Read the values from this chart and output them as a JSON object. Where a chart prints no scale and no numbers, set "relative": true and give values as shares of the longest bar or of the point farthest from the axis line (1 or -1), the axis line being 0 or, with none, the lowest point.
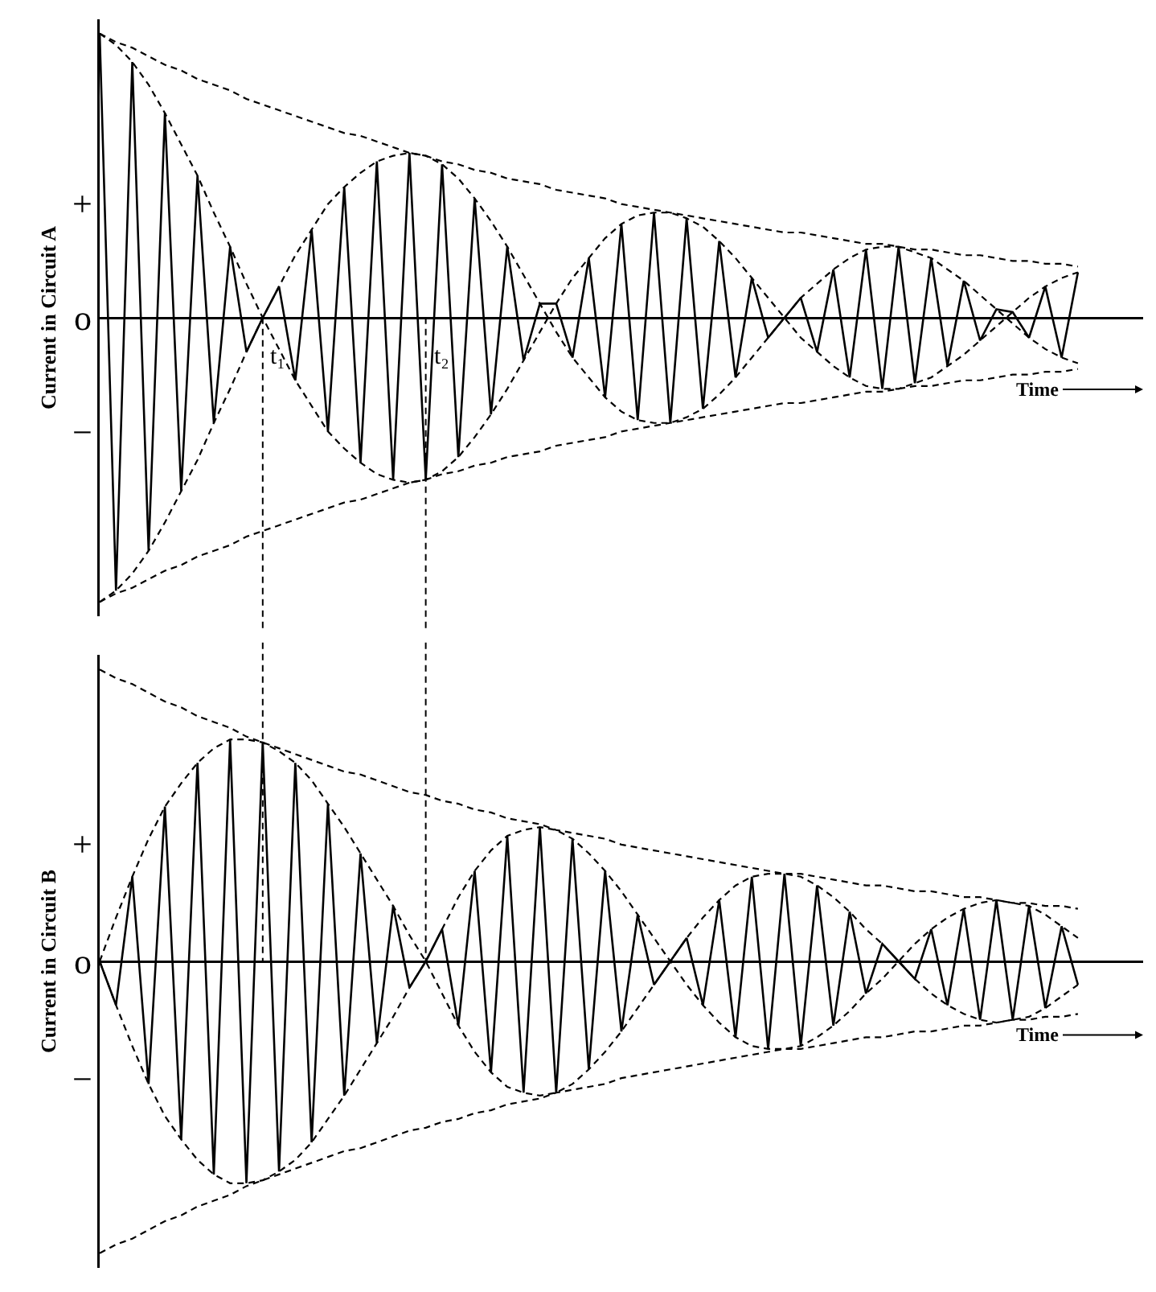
{
  "chart_data": [
    {
      "type": "line",
      "relative": true,
      "ylabel": "Current in Circuit A",
      "categories": [
        null,
        null,
        null,
        null,
        null,
        null,
        null,
        null,
        null,
        null,
        null,
        null,
        null,
        null,
        null,
        null,
        null,
        null,
        null,
        null,
        null,
        null,
        null,
        null,
        null,
        null,
        null,
        null,
        null,
        null,
        null,
        null,
        null,
        null,
        null,
        null,
        null,
        null,
        null,
        null,
        null,
        null,
        null,
        null,
        null,
        null,
        null,
        null,
        null,
        null,
        null,
        null,
        null,
        null,
        null,
        null,
        null,
        null,
        null,
        null,
        null
      ],
      "series": [
        {
          "color": "#000000",
          "line_style": "solid",
          "values": [
            1.0,
            -0.96,
            0.9,
            -0.82,
            0.72,
            -0.61,
            0.5,
            -0.37,
            0.25,
            -0.12,
            0,
            0.11,
            -0.22,
            0.31,
            -0.4,
            0.46,
            -0.51,
            0.55,
            -0.57,
            0.58,
            -0.57,
            0.54,
            -0.49,
            0.42,
            -0.34,
            0.25,
            -0.15,
            0.05,
            0.05,
            -0.14,
            0.21,
            -0.28,
            0.33,
            -0.36,
            0.37,
            -0.37,
            0.35,
            -0.32,
            0.27,
            -0.21,
            0.14,
            -0.07,
            0,
            0.07,
            -0.12,
            0.17,
            -0.21,
            0.24,
            -0.25,
            0.25,
            -0.23,
            0.21,
            -0.17,
            0.13,
            -0.08,
            0.03,
            0.02,
            -0.07,
            0.11,
            -0.14,
            0.16
          ]
        },
        {
          "color": "#000000",
          "line_style": "dashed",
          "values": [
            1.0,
            0.96,
            0.9,
            0.82,
            0.72,
            0.61,
            0.5,
            0.37,
            0.25,
            0.12,
            0,
            -0.11,
            -0.22,
            -0.31,
            -0.4,
            -0.46,
            -0.51,
            -0.55,
            -0.57,
            -0.58,
            -0.57,
            -0.54,
            -0.49,
            -0.42,
            -0.34,
            -0.25,
            -0.15,
            -0.05,
            0.05,
            0.14,
            0.21,
            0.28,
            0.33,
            0.36,
            0.37,
            0.37,
            0.35,
            0.32,
            0.27,
            0.21,
            0.14,
            0.07,
            0,
            -0.07,
            -0.12,
            -0.17,
            -0.21,
            -0.24,
            -0.25,
            -0.25,
            -0.23,
            -0.21,
            -0.17,
            -0.13,
            -0.08,
            -0.03,
            0.02,
            0.07,
            0.11,
            0.14,
            0.16
          ]
        },
        {
          "color": "#000000",
          "line_style": "dashed",
          "values": [
            -1.0,
            -0.96,
            -0.9,
            -0.82,
            -0.72,
            -0.61,
            -0.5,
            -0.37,
            -0.25,
            -0.12,
            0,
            0.11,
            0.22,
            0.31,
            0.4,
            0.46,
            0.51,
            0.55,
            0.57,
            0.58,
            0.57,
            0.54,
            0.49,
            0.42,
            0.34,
            0.25,
            0.15,
            0.05,
            -0.05,
            -0.14,
            -0.21,
            -0.28,
            -0.33,
            -0.36,
            -0.37,
            -0.37,
            -0.35,
            -0.32,
            -0.27,
            -0.21,
            -0.14,
            -0.07,
            0,
            0.07,
            0.12,
            0.17,
            0.21,
            0.24,
            0.25,
            0.25,
            0.23,
            0.21,
            0.17,
            0.13,
            0.08,
            0.03,
            -0.02,
            -0.07,
            -0.11,
            -0.14,
            -0.16
          ]
        },
        {
          "color": "#000000",
          "line_style": "dashed",
          "values": [
            1.0,
            0.97,
            0.95,
            0.92,
            0.89,
            0.87,
            0.84,
            0.82,
            0.8,
            0.77,
            0.75,
            0.73,
            0.71,
            0.69,
            0.67,
            0.65,
            0.64,
            0.62,
            0.6,
            0.58,
            0.57,
            0.55,
            0.54,
            0.52,
            0.51,
            0.49,
            0.48,
            0.47,
            0.45,
            0.44,
            0.43,
            0.42,
            0.4,
            0.39,
            0.38,
            0.37,
            0.36,
            0.35,
            0.34,
            0.33,
            0.32,
            0.31,
            0.3,
            0.3,
            0.29,
            0.28,
            0.27,
            0.26,
            0.26,
            0.25,
            0.24,
            0.24,
            0.23,
            0.22,
            0.22,
            0.21,
            0.2,
            0.2,
            0.19,
            0.19,
            0.18
          ]
        },
        {
          "color": "#000000",
          "line_style": "dashed",
          "values": [
            -1.0,
            -0.97,
            -0.95,
            -0.92,
            -0.89,
            -0.87,
            -0.84,
            -0.82,
            -0.8,
            -0.77,
            -0.75,
            -0.73,
            -0.71,
            -0.69,
            -0.67,
            -0.65,
            -0.64,
            -0.62,
            -0.6,
            -0.58,
            -0.57,
            -0.55,
            -0.54,
            -0.52,
            -0.51,
            -0.49,
            -0.48,
            -0.47,
            -0.45,
            -0.44,
            -0.43,
            -0.42,
            -0.4,
            -0.39,
            -0.38,
            -0.37,
            -0.36,
            -0.35,
            -0.34,
            -0.33,
            -0.32,
            -0.31,
            -0.3,
            -0.3,
            -0.29,
            -0.28,
            -0.27,
            -0.26,
            -0.26,
            -0.25,
            -0.24,
            -0.24,
            -0.23,
            -0.22,
            -0.22,
            -0.21,
            -0.2,
            -0.2,
            -0.19,
            -0.19,
            -0.18
          ]
        }
      ],
      "annotations": [
        "+",
        "o",
        "−",
        "Time",
        "t₁",
        "t₂"
      ]
    },
    {
      "type": "line",
      "relative": true,
      "ylabel": "Current in Circuit B",
      "categories": [
        null,
        null,
        null,
        null,
        null,
        null,
        null,
        null,
        null,
        null,
        null,
        null,
        null,
        null,
        null,
        null,
        null,
        null,
        null,
        null,
        null,
        null,
        null,
        null,
        null,
        null,
        null,
        null,
        null,
        null,
        null,
        null,
        null,
        null,
        null,
        null,
        null,
        null,
        null,
        null,
        null,
        null,
        null,
        null,
        null,
        null,
        null,
        null,
        null,
        null,
        null,
        null,
        null,
        null,
        null,
        null,
        null,
        null,
        null,
        null,
        null
      ],
      "series": [
        {
          "color": "#000000",
          "line_style": "solid",
          "values": [
            0,
            -0.15,
            0.29,
            -0.42,
            0.53,
            -0.61,
            0.68,
            -0.73,
            0.76,
            -0.76,
            0.75,
            -0.72,
            0.68,
            -0.62,
            0.54,
            -0.46,
            0.37,
            -0.28,
            0.19,
            -0.09,
            0,
            0.11,
            -0.22,
            0.31,
            -0.38,
            0.43,
            -0.45,
            0.46,
            -0.45,
            0.42,
            -0.37,
            0.31,
            -0.24,
            0.16,
            -0.08,
            0,
            0.08,
            -0.15,
            0.21,
            -0.26,
            0.29,
            -0.3,
            0.3,
            -0.29,
            0.26,
            -0.22,
            0.17,
            -0.11,
            0.06,
            0,
            -0.06,
            0.11,
            -0.15,
            0.18,
            -0.2,
            0.21,
            -0.2,
            0.19,
            -0.16,
            0.12,
            -0.08
          ]
        },
        {
          "color": "#000000",
          "line_style": "dashed",
          "values": [
            0,
            0.15,
            0.29,
            0.42,
            0.53,
            0.61,
            0.68,
            0.73,
            0.76,
            0.76,
            0.75,
            0.72,
            0.68,
            0.62,
            0.54,
            0.46,
            0.37,
            0.28,
            0.19,
            0.09,
            0,
            -0.11,
            -0.22,
            -0.31,
            -0.38,
            -0.43,
            -0.45,
            -0.46,
            -0.45,
            -0.42,
            -0.37,
            -0.31,
            -0.24,
            -0.16,
            -0.08,
            0,
            0.08,
            0.15,
            0.21,
            0.26,
            0.29,
            0.3,
            0.3,
            0.29,
            0.26,
            0.22,
            0.17,
            0.11,
            0.06,
            0,
            -0.06,
            -0.11,
            -0.15,
            -0.18,
            -0.2,
            -0.21,
            -0.2,
            -0.19,
            -0.16,
            -0.12,
            -0.08
          ]
        },
        {
          "color": "#000000",
          "line_style": "dashed",
          "values": [
            0,
            -0.15,
            -0.29,
            -0.42,
            -0.53,
            -0.61,
            -0.68,
            -0.73,
            -0.76,
            -0.76,
            -0.75,
            -0.72,
            -0.68,
            -0.62,
            -0.54,
            -0.46,
            -0.37,
            -0.28,
            -0.19,
            -0.09,
            0,
            0.11,
            0.22,
            0.31,
            0.38,
            0.43,
            0.45,
            0.46,
            0.45,
            0.42,
            0.37,
            0.31,
            0.24,
            0.16,
            0.08,
            0,
            -0.08,
            -0.15,
            -0.21,
            -0.26,
            -0.29,
            -0.3,
            -0.3,
            -0.29,
            -0.26,
            -0.22,
            -0.17,
            -0.11,
            -0.06,
            0,
            0.06,
            0.11,
            0.15,
            0.18,
            0.2,
            0.21,
            0.2,
            0.19,
            0.16,
            0.12,
            0.08
          ]
        },
        {
          "color": "#000000",
          "line_style": "dashed",
          "values": [
            1.0,
            0.97,
            0.95,
            0.92,
            0.89,
            0.87,
            0.84,
            0.82,
            0.8,
            0.77,
            0.75,
            0.73,
            0.71,
            0.69,
            0.67,
            0.65,
            0.64,
            0.62,
            0.6,
            0.58,
            0.57,
            0.55,
            0.54,
            0.52,
            0.51,
            0.49,
            0.48,
            0.47,
            0.45,
            0.44,
            0.43,
            0.42,
            0.4,
            0.39,
            0.38,
            0.37,
            0.36,
            0.35,
            0.34,
            0.33,
            0.32,
            0.31,
            0.3,
            0.3,
            0.29,
            0.28,
            0.27,
            0.26,
            0.26,
            0.25,
            0.24,
            0.24,
            0.23,
            0.22,
            0.22,
            0.21,
            0.2,
            0.2,
            0.19,
            0.19,
            0.18
          ]
        },
        {
          "color": "#000000",
          "line_style": "dashed",
          "values": [
            -1.0,
            -0.97,
            -0.95,
            -0.92,
            -0.89,
            -0.87,
            -0.84,
            -0.82,
            -0.8,
            -0.77,
            -0.75,
            -0.73,
            -0.71,
            -0.69,
            -0.67,
            -0.65,
            -0.64,
            -0.62,
            -0.6,
            -0.58,
            -0.57,
            -0.55,
            -0.54,
            -0.52,
            -0.51,
            -0.49,
            -0.48,
            -0.47,
            -0.45,
            -0.44,
            -0.43,
            -0.42,
            -0.4,
            -0.39,
            -0.38,
            -0.37,
            -0.36,
            -0.35,
            -0.34,
            -0.33,
            -0.32,
            -0.31,
            -0.3,
            -0.3,
            -0.29,
            -0.28,
            -0.27,
            -0.26,
            -0.26,
            -0.25,
            -0.24,
            -0.24,
            -0.23,
            -0.22,
            -0.22,
            -0.21,
            -0.2,
            -0.2,
            -0.19,
            -0.19,
            -0.18
          ]
        }
      ],
      "annotations": [
        "+",
        "o",
        "−",
        "Time"
      ]
    }
  ]
}
